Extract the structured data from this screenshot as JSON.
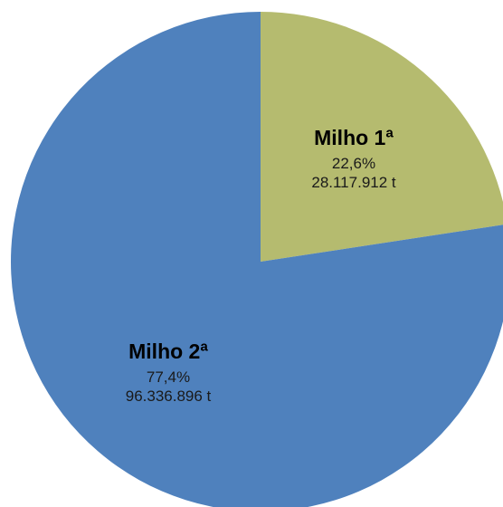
{
  "chart_data": {
    "type": "pie",
    "start_angle_deg": 0,
    "direction": "clockwise",
    "slices": [
      {
        "name": "Milho 1ª",
        "percent": 22.6,
        "percent_label": "22,6%",
        "value": 28117912,
        "value_label": "28.117.912 t",
        "color": "#b5bb6f"
      },
      {
        "name": "Milho 2ª",
        "percent": 77.4,
        "percent_label": "77,4%",
        "value": 96336896,
        "value_label": "96.336.896 t",
        "color": "#4f81bd"
      }
    ]
  }
}
